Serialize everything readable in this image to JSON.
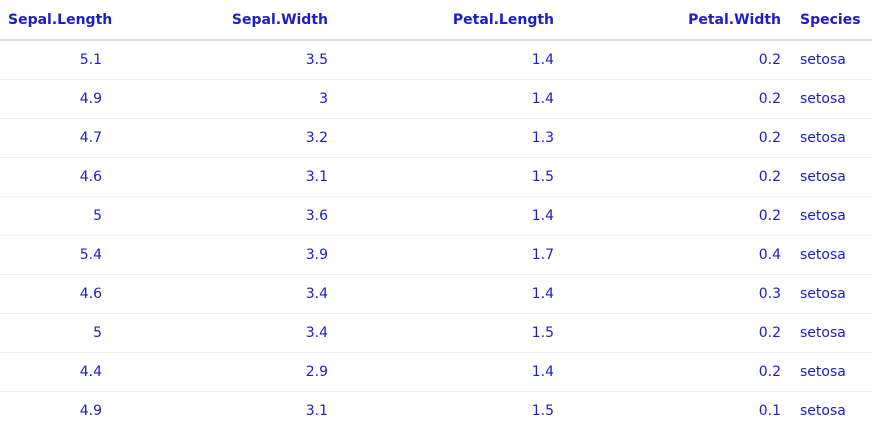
{
  "table": {
    "columns": [
      "Sepal.Length",
      "Sepal.Width",
      "Petal.Length",
      "Petal.Width",
      "Species"
    ],
    "rows": [
      [
        "5.1",
        "3.5",
        "1.4",
        "0.2",
        "setosa"
      ],
      [
        "4.9",
        "3",
        "1.4",
        "0.2",
        "setosa"
      ],
      [
        "4.7",
        "3.2",
        "1.3",
        "0.2",
        "setosa"
      ],
      [
        "4.6",
        "3.1",
        "1.5",
        "0.2",
        "setosa"
      ],
      [
        "5",
        "3.6",
        "1.4",
        "0.2",
        "setosa"
      ],
      [
        "5.4",
        "3.9",
        "1.7",
        "0.4",
        "setosa"
      ],
      [
        "4.6",
        "3.4",
        "1.4",
        "0.3",
        "setosa"
      ],
      [
        "5",
        "3.4",
        "1.5",
        "0.2",
        "setosa"
      ],
      [
        "4.4",
        "2.9",
        "1.4",
        "0.2",
        "setosa"
      ],
      [
        "4.9",
        "3.1",
        "1.5",
        "0.1",
        "setosa"
      ]
    ]
  }
}
